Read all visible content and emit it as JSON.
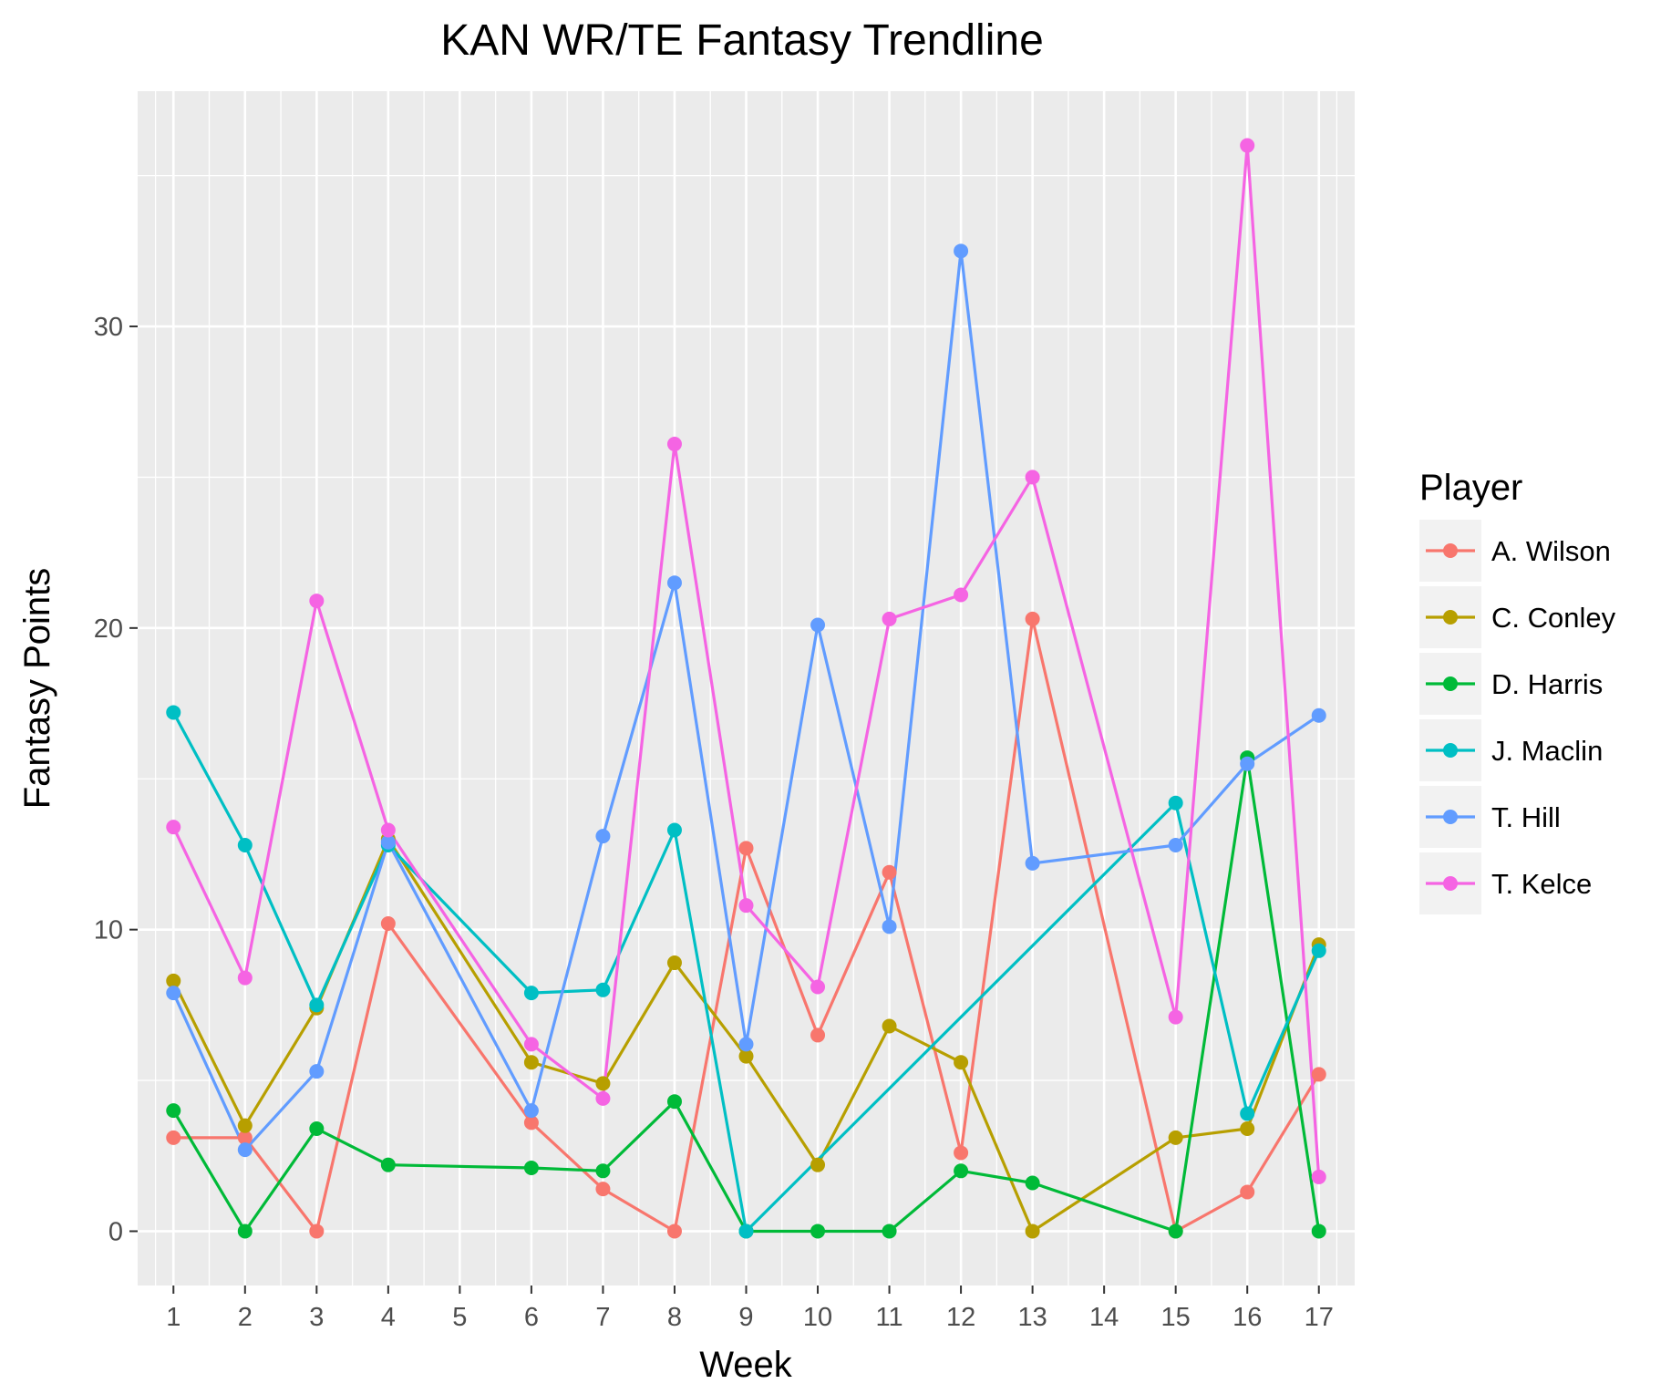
{
  "chart_data": {
    "type": "line",
    "title": "KAN WR/TE Fantasy Trendline",
    "xlabel": "Week",
    "ylabel": "Fantasy Points",
    "x_ticks": [
      1,
      2,
      3,
      4,
      5,
      6,
      7,
      8,
      9,
      10,
      11,
      12,
      13,
      14,
      15,
      16,
      17
    ],
    "xlim": [
      0.5,
      17.5
    ],
    "y_ticks": [
      0,
      10,
      20,
      30
    ],
    "ylim": [
      -1.8,
      37.8
    ],
    "grid": true,
    "legend": {
      "title": "Player",
      "position": "right"
    },
    "series": [
      {
        "name": "A. Wilson",
        "color": "#F8766D",
        "points": [
          [
            1,
            3.1
          ],
          [
            2,
            3.1
          ],
          [
            3,
            0.0
          ],
          [
            4,
            10.2
          ],
          [
            6,
            3.6
          ],
          [
            7,
            1.4
          ],
          [
            8,
            0.0
          ],
          [
            9,
            12.7
          ],
          [
            10,
            6.5
          ],
          [
            11,
            11.9
          ],
          [
            12,
            2.6
          ],
          [
            13,
            20.3
          ],
          [
            15,
            0.0
          ],
          [
            16,
            1.3
          ],
          [
            17,
            5.2
          ]
        ]
      },
      {
        "name": "C. Conley",
        "color": "#B79F00",
        "points": [
          [
            1,
            8.3
          ],
          [
            2,
            3.5
          ],
          [
            3,
            7.4
          ],
          [
            4,
            13.0
          ],
          [
            6,
            5.6
          ],
          [
            7,
            4.9
          ],
          [
            8,
            8.9
          ],
          [
            9,
            5.8
          ],
          [
            10,
            2.2
          ],
          [
            11,
            6.8
          ],
          [
            12,
            5.6
          ],
          [
            13,
            0.0
          ],
          [
            15,
            3.1
          ],
          [
            16,
            3.4
          ],
          [
            17,
            9.5
          ]
        ]
      },
      {
        "name": "D. Harris",
        "color": "#00BA38",
        "points": [
          [
            1,
            4.0
          ],
          [
            2,
            0.0
          ],
          [
            3,
            3.4
          ],
          [
            4,
            2.2
          ],
          [
            6,
            2.1
          ],
          [
            7,
            2.0
          ],
          [
            8,
            4.3
          ],
          [
            9,
            0.0
          ],
          [
            10,
            0.0
          ],
          [
            11,
            0.0
          ],
          [
            12,
            2.0
          ],
          [
            13,
            1.6
          ],
          [
            15,
            0.0
          ],
          [
            16,
            15.7
          ],
          [
            17,
            0.0
          ]
        ]
      },
      {
        "name": "J. Maclin",
        "color": "#00BFC4",
        "points": [
          [
            1,
            17.2
          ],
          [
            2,
            12.8
          ],
          [
            3,
            7.5
          ],
          [
            4,
            12.8
          ],
          [
            6,
            7.9
          ],
          [
            7,
            8.0
          ],
          [
            8,
            13.3
          ],
          [
            9,
            0.0
          ],
          [
            15,
            14.2
          ],
          [
            16,
            3.9
          ],
          [
            17,
            9.3
          ]
        ]
      },
      {
        "name": "T. Hill",
        "color": "#619CFF",
        "points": [
          [
            1,
            7.9
          ],
          [
            2,
            2.7
          ],
          [
            3,
            5.3
          ],
          [
            4,
            12.9
          ],
          [
            6,
            4.0
          ],
          [
            7,
            13.1
          ],
          [
            8,
            21.5
          ],
          [
            9,
            6.2
          ],
          [
            10,
            20.1
          ],
          [
            11,
            10.1
          ],
          [
            12,
            32.5
          ],
          [
            13,
            12.2
          ],
          [
            15,
            12.8
          ],
          [
            16,
            15.5
          ],
          [
            17,
            17.1
          ]
        ]
      },
      {
        "name": "T. Kelce",
        "color": "#F564E3",
        "points": [
          [
            1,
            13.4
          ],
          [
            2,
            8.4
          ],
          [
            3,
            20.9
          ],
          [
            4,
            13.3
          ],
          [
            6,
            6.2
          ],
          [
            7,
            4.4
          ],
          [
            8,
            26.1
          ],
          [
            9,
            10.8
          ],
          [
            10,
            8.1
          ],
          [
            11,
            20.3
          ],
          [
            12,
            21.1
          ],
          [
            13,
            25.0
          ],
          [
            15,
            7.1
          ],
          [
            16,
            36.0
          ],
          [
            17,
            1.8
          ]
        ]
      }
    ]
  }
}
